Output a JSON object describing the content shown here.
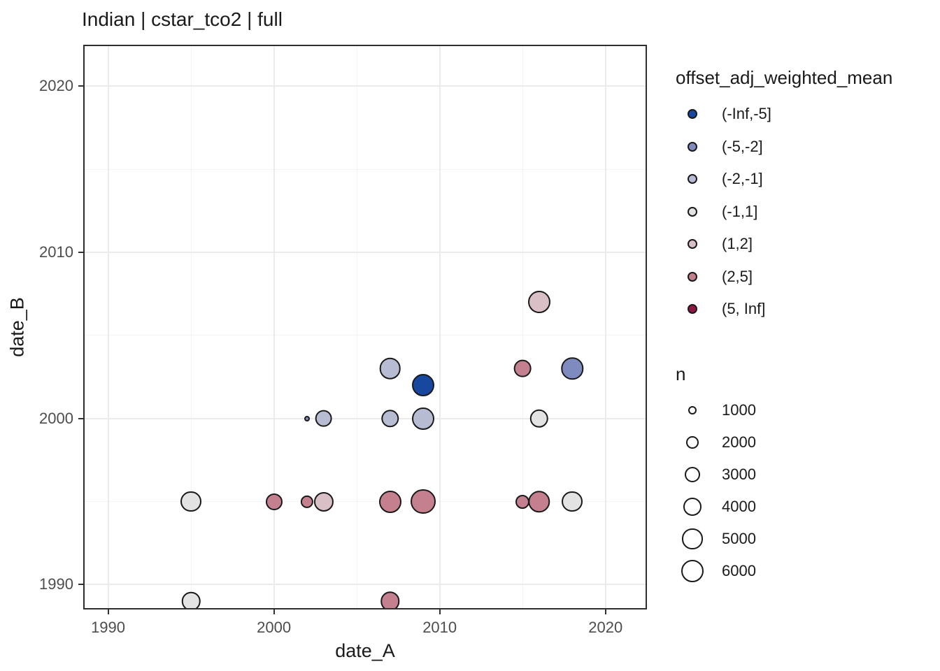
{
  "chart": {
    "title": "Indian | cstar_tco2 | full",
    "xlabel": "date_A",
    "ylabel": "date_B"
  },
  "axes": {
    "x_tick_labels": [
      "1990",
      "2000",
      "2010",
      "2020"
    ],
    "y_tick_labels": [
      "1990",
      "2000",
      "2010",
      "2020"
    ]
  },
  "legend_color": {
    "title": "offset_adj_weighted_mean",
    "items": [
      {
        "label": "(-Inf,-5]",
        "color": "#17479E"
      },
      {
        "label": "(-5,-2]",
        "color": "#7F8BBE"
      },
      {
        "label": "(-2,-1]",
        "color": "#B8BCD2"
      },
      {
        "label": "(-1,1]",
        "color": "#E4E3E4"
      },
      {
        "label": "(1,2]",
        "color": "#D9BFC6"
      },
      {
        "label": "(2,5]",
        "color": "#C4808F"
      },
      {
        "label": "(5, Inf]",
        "color": "#8E1843"
      }
    ]
  },
  "legend_size": {
    "title": "n",
    "items": [
      1000,
      2000,
      3000,
      4000,
      5000,
      6000
    ]
  },
  "size_scale": {
    "k": 0.218,
    "b": -0.89
  },
  "colors": {
    "background": "#FFFFFF",
    "panel_border": "#2E2E2E",
    "grid_major": "#EBEBEB",
    "grid_minor": "#F4F4F4",
    "axis_text": "#4D4D4D",
    "text": "#1A1A1A",
    "point_stroke": "#1A1A1A"
  },
  "chart_data": {
    "type": "scatter",
    "title": "Indian | cstar_tco2 | full",
    "xlabel": "date_A",
    "ylabel": "date_B",
    "xlim": [
      1988.5,
      2022.5
    ],
    "ylim": [
      1988.5,
      2022.5
    ],
    "x_major_ticks": [
      1990,
      2000,
      2010,
      2020
    ],
    "x_minor_ticks": [
      1995,
      2005,
      2015
    ],
    "y_major_ticks": [
      1990,
      2000,
      2010,
      2020
    ],
    "y_minor_ticks": [
      1995,
      2005,
      2015
    ],
    "grid": true,
    "legend_position": "right",
    "color_variable": "offset_adj_weighted_mean",
    "size_variable": "n",
    "points": [
      {
        "date_A": 1995,
        "date_B": 1989,
        "n": 4200,
        "offset_bin": "(-1,1]"
      },
      {
        "date_A": 1995,
        "date_B": 1995,
        "n": 5300,
        "offset_bin": "(-1,1]"
      },
      {
        "date_A": 2000,
        "date_B": 1995,
        "n": 3500,
        "offset_bin": "(2,5]"
      },
      {
        "date_A": 2002,
        "date_B": 1995,
        "n": 2100,
        "offset_bin": "(2,5]"
      },
      {
        "date_A": 2002,
        "date_B": 2000,
        "n": 500,
        "offset_bin": "(-5,-2]"
      },
      {
        "date_A": 2003,
        "date_B": 1995,
        "n": 4700,
        "offset_bin": "(1,2]"
      },
      {
        "date_A": 2003,
        "date_B": 2000,
        "n": 3700,
        "offset_bin": "(-2,-1]"
      },
      {
        "date_A": 2007,
        "date_B": 1989,
        "n": 4500,
        "offset_bin": "(2,5]"
      },
      {
        "date_A": 2007,
        "date_B": 1995,
        "n": 6000,
        "offset_bin": "(2,5]"
      },
      {
        "date_A": 2007,
        "date_B": 2000,
        "n": 3900,
        "offset_bin": "(-2,-1]"
      },
      {
        "date_A": 2007,
        "date_B": 2003,
        "n": 5500,
        "offset_bin": "(-2,-1]"
      },
      {
        "date_A": 2009,
        "date_B": 1995,
        "n": 7500,
        "offset_bin": "(2,5]"
      },
      {
        "date_A": 2009,
        "date_B": 2000,
        "n": 6000,
        "offset_bin": "(-2,-1]"
      },
      {
        "date_A": 2009,
        "date_B": 2002,
        "n": 6000,
        "offset_bin": "(-Inf,-5]"
      },
      {
        "date_A": 2015,
        "date_B": 1995,
        "n": 2500,
        "offset_bin": "(2,5]"
      },
      {
        "date_A": 2015,
        "date_B": 2003,
        "n": 3700,
        "offset_bin": "(2,5]"
      },
      {
        "date_A": 2016,
        "date_B": 1995,
        "n": 5800,
        "offset_bin": "(2,5]"
      },
      {
        "date_A": 2016,
        "date_B": 2000,
        "n": 4200,
        "offset_bin": "(-1,1]"
      },
      {
        "date_A": 2016,
        "date_B": 2007,
        "n": 6000,
        "offset_bin": "(1,2]"
      },
      {
        "date_A": 2018,
        "date_B": 1995,
        "n": 5300,
        "offset_bin": "(-1,1]"
      },
      {
        "date_A": 2018,
        "date_B": 2003,
        "n": 5800,
        "offset_bin": "(-5,-2]"
      }
    ]
  }
}
